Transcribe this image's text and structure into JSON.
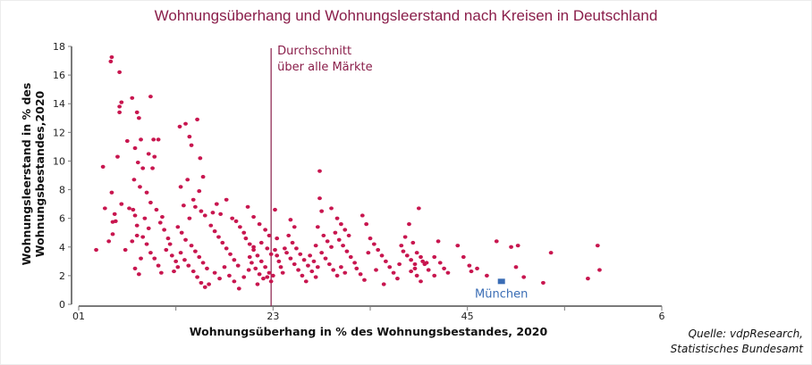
{
  "chart_data": {
    "type": "scatter",
    "title": "Wohnungsüberhang und Wohnungsleerstand nach Kreisen in Deutschland",
    "xlabel": "Wohnungsüberhang in % des Wohnungsbestandes, 2020",
    "ylabel_lines": [
      "Wohnungsleerstand in % des",
      "Wohnungsbestandes,2020"
    ],
    "xlim": [
      0,
      6
    ],
    "ylim": [
      0,
      18
    ],
    "x_ticks": [
      0,
      1,
      2,
      3,
      4,
      5,
      6
    ],
    "x_tick_labels": [
      {
        "at": 0,
        "text": "01"
      },
      {
        "at": 2,
        "text": "23"
      },
      {
        "at": 4,
        "text": "45"
      },
      {
        "at": 6,
        "text": "6"
      }
    ],
    "y_ticks": [
      0,
      2,
      4,
      6,
      8,
      10,
      12,
      14,
      16,
      18
    ],
    "y_tick_labels": [
      "0",
      "2",
      "4",
      "6",
      "8",
      "10",
      "12",
      "14",
      "16",
      "18"
    ],
    "grid": false,
    "average_line": {
      "x": 1.98,
      "label_lines": [
        "Durchschnitt",
        "über alle Märkte"
      ],
      "color": "#8a1e4a"
    },
    "highlight": {
      "name": "München",
      "x": 4.35,
      "y": 1.6,
      "color": "#3a6db5"
    },
    "point_color": "#c8164f",
    "series": [
      {
        "name": "Kreise",
        "points": [
          [
            0.34,
            17.25
          ],
          [
            0.33,
            16.95
          ],
          [
            0.42,
            16.2
          ],
          [
            0.25,
            9.6
          ],
          [
            0.27,
            6.7
          ],
          [
            0.18,
            3.8
          ],
          [
            0.35,
            5.75
          ],
          [
            0.37,
            6.3
          ],
          [
            0.42,
            13.8
          ],
          [
            0.44,
            14.1
          ],
          [
            0.42,
            13.4
          ],
          [
            0.5,
            11.4
          ],
          [
            0.55,
            14.4
          ],
          [
            0.6,
            13.4
          ],
          [
            0.62,
            13.0
          ],
          [
            0.64,
            11.5
          ],
          [
            0.58,
            10.9
          ],
          [
            0.61,
            9.9
          ],
          [
            0.66,
            9.5
          ],
          [
            0.57,
            8.7
          ],
          [
            0.63,
            8.2
          ],
          [
            0.7,
            7.8
          ],
          [
            0.74,
            14.5
          ],
          [
            0.77,
            11.5
          ],
          [
            0.82,
            11.5
          ],
          [
            0.72,
            10.5
          ],
          [
            0.78,
            10.3
          ],
          [
            0.76,
            9.5
          ],
          [
            0.4,
            10.3
          ],
          [
            0.34,
            7.8
          ],
          [
            0.35,
            4.9
          ],
          [
            0.31,
            4.4
          ],
          [
            0.38,
            5.8
          ],
          [
            0.44,
            7.0
          ],
          [
            0.48,
            3.8
          ],
          [
            0.52,
            6.7
          ],
          [
            0.56,
            6.6
          ],
          [
            0.58,
            6.2
          ],
          [
            0.6,
            5.5
          ],
          [
            0.55,
            4.4
          ],
          [
            0.6,
            4.8
          ],
          [
            0.64,
            3.2
          ],
          [
            0.58,
            2.5
          ],
          [
            0.62,
            2.1
          ],
          [
            0.68,
            6.0
          ],
          [
            0.72,
            5.3
          ],
          [
            0.66,
            4.7
          ],
          [
            0.7,
            4.2
          ],
          [
            0.74,
            3.6
          ],
          [
            0.78,
            3.2
          ],
          [
            0.82,
            2.7
          ],
          [
            0.85,
            2.2
          ],
          [
            0.74,
            7.1
          ],
          [
            0.8,
            6.6
          ],
          [
            0.86,
            6.1
          ],
          [
            0.84,
            5.7
          ],
          [
            0.88,
            5.2
          ],
          [
            0.92,
            4.6
          ],
          [
            0.94,
            4.2
          ],
          [
            0.9,
            3.8
          ],
          [
            0.96,
            3.4
          ],
          [
            1.0,
            3.0
          ],
          [
            1.02,
            2.6
          ],
          [
            0.98,
            2.3
          ],
          [
            1.04,
            12.4
          ],
          [
            1.1,
            12.6
          ],
          [
            1.14,
            11.7
          ],
          [
            1.16,
            11.1
          ],
          [
            1.22,
            12.9
          ],
          [
            1.25,
            10.2
          ],
          [
            1.05,
            8.2
          ],
          [
            1.12,
            8.7
          ],
          [
            1.18,
            7.3
          ],
          [
            1.24,
            7.9
          ],
          [
            1.28,
            8.9
          ],
          [
            1.2,
            6.8
          ],
          [
            1.26,
            6.5
          ],
          [
            1.3,
            6.2
          ],
          [
            1.08,
            6.9
          ],
          [
            1.14,
            6.0
          ],
          [
            1.02,
            5.4
          ],
          [
            1.06,
            5.0
          ],
          [
            1.1,
            4.5
          ],
          [
            1.16,
            4.1
          ],
          [
            1.2,
            3.7
          ],
          [
            1.24,
            3.3
          ],
          [
            1.28,
            2.9
          ],
          [
            1.32,
            2.5
          ],
          [
            1.05,
            3.6
          ],
          [
            1.09,
            3.1
          ],
          [
            1.13,
            2.7
          ],
          [
            1.18,
            2.3
          ],
          [
            1.22,
            1.9
          ],
          [
            1.26,
            1.5
          ],
          [
            1.3,
            1.2
          ],
          [
            1.34,
            1.4
          ],
          [
            1.36,
            5.5
          ],
          [
            1.4,
            5.1
          ],
          [
            1.44,
            4.7
          ],
          [
            1.48,
            4.3
          ],
          [
            1.52,
            3.9
          ],
          [
            1.56,
            3.5
          ],
          [
            1.6,
            3.1
          ],
          [
            1.64,
            2.7
          ],
          [
            1.38,
            6.4
          ],
          [
            1.42,
            7.0
          ],
          [
            1.46,
            6.3
          ],
          [
            1.52,
            7.3
          ],
          [
            1.58,
            6.0
          ],
          [
            1.62,
            5.8
          ],
          [
            1.66,
            5.4
          ],
          [
            1.7,
            5.0
          ],
          [
            1.4,
            2.2
          ],
          [
            1.45,
            1.8
          ],
          [
            1.5,
            2.6
          ],
          [
            1.55,
            2.0
          ],
          [
            1.6,
            1.6
          ],
          [
            1.65,
            1.1
          ],
          [
            1.7,
            1.9
          ],
          [
            1.75,
            2.4
          ],
          [
            1.72,
            4.6
          ],
          [
            1.76,
            4.2
          ],
          [
            1.8,
            3.8
          ],
          [
            1.84,
            3.4
          ],
          [
            1.88,
            3.0
          ],
          [
            1.92,
            2.6
          ],
          [
            1.96,
            2.2
          ],
          [
            1.9,
            1.8
          ],
          [
            1.74,
            6.8
          ],
          [
            1.8,
            6.1
          ],
          [
            1.86,
            5.6
          ],
          [
            1.92,
            5.2
          ],
          [
            1.96,
            4.8
          ],
          [
            1.88,
            4.3
          ],
          [
            1.94,
            3.9
          ],
          [
            1.98,
            3.5
          ],
          [
            1.78,
            2.9
          ],
          [
            1.82,
            2.5
          ],
          [
            1.86,
            2.1
          ],
          [
            1.94,
            1.9
          ],
          [
            1.98,
            1.6
          ],
          [
            1.84,
            1.4
          ],
          [
            1.8,
            4.0
          ],
          [
            1.76,
            3.3
          ],
          [
            2.02,
            3.8
          ],
          [
            2.04,
            3.4
          ],
          [
            2.06,
            3.0
          ],
          [
            2.08,
            2.6
          ],
          [
            2.1,
            2.2
          ],
          [
            2.02,
            6.6
          ],
          [
            2.04,
            4.6
          ],
          [
            2.0,
            2.0
          ],
          [
            2.16,
            4.8
          ],
          [
            2.2,
            4.3
          ],
          [
            2.24,
            3.9
          ],
          [
            2.28,
            3.5
          ],
          [
            2.32,
            3.1
          ],
          [
            2.36,
            2.7
          ],
          [
            2.4,
            2.3
          ],
          [
            2.44,
            1.9
          ],
          [
            2.14,
            3.6
          ],
          [
            2.18,
            3.2
          ],
          [
            2.22,
            2.8
          ],
          [
            2.26,
            2.4
          ],
          [
            2.3,
            2.0
          ],
          [
            2.34,
            1.6
          ],
          [
            2.18,
            5.9
          ],
          [
            2.22,
            5.4
          ],
          [
            2.48,
            9.3
          ],
          [
            2.48,
            7.4
          ],
          [
            2.5,
            6.5
          ],
          [
            2.46,
            5.4
          ],
          [
            2.52,
            4.8
          ],
          [
            2.56,
            4.4
          ],
          [
            2.6,
            4.0
          ],
          [
            2.44,
            4.1
          ],
          [
            2.5,
            3.6
          ],
          [
            2.54,
            3.2
          ],
          [
            2.58,
            2.8
          ],
          [
            2.62,
            2.4
          ],
          [
            2.66,
            2.0
          ],
          [
            2.46,
            2.6
          ],
          [
            2.42,
            3.0
          ],
          [
            2.38,
            3.4
          ],
          [
            2.66,
            6.0
          ],
          [
            2.7,
            5.6
          ],
          [
            2.74,
            5.2
          ],
          [
            2.78,
            4.8
          ],
          [
            2.72,
            4.1
          ],
          [
            2.76,
            3.7
          ],
          [
            2.8,
            3.3
          ],
          [
            2.84,
            2.9
          ],
          [
            2.6,
            6.7
          ],
          [
            2.64,
            5.0
          ],
          [
            2.68,
            4.5
          ],
          [
            2.86,
            2.5
          ],
          [
            2.9,
            2.1
          ],
          [
            2.94,
            1.7
          ],
          [
            2.7,
            2.6
          ],
          [
            2.74,
            2.2
          ],
          [
            2.92,
            6.2
          ],
          [
            2.96,
            5.6
          ],
          [
            3.0,
            4.6
          ],
          [
            3.04,
            4.2
          ],
          [
            3.08,
            3.8
          ],
          [
            3.12,
            3.4
          ],
          [
            3.16,
            3.0
          ],
          [
            3.2,
            2.6
          ],
          [
            3.24,
            2.2
          ],
          [
            3.28,
            1.8
          ],
          [
            3.06,
            2.4
          ],
          [
            3.14,
            1.4
          ],
          [
            3.34,
            3.7
          ],
          [
            3.38,
            3.4
          ],
          [
            3.42,
            3.1
          ],
          [
            3.46,
            2.8
          ],
          [
            3.5,
            6.7
          ],
          [
            3.4,
            5.6
          ],
          [
            3.36,
            4.7
          ],
          [
            3.32,
            4.1
          ],
          [
            3.44,
            4.3
          ],
          [
            3.48,
            3.6
          ],
          [
            3.52,
            3.3
          ],
          [
            3.56,
            2.8
          ],
          [
            3.6,
            2.4
          ],
          [
            3.66,
            2.0
          ],
          [
            3.52,
            1.6
          ],
          [
            3.46,
            2.5
          ],
          [
            3.54,
            3.0
          ],
          [
            3.58,
            2.9
          ],
          [
            3.42,
            2.3
          ],
          [
            3.48,
            2.0
          ],
          [
            3.7,
            4.4
          ],
          [
            3.72,
            2.9
          ],
          [
            3.66,
            3.3
          ],
          [
            3.76,
            2.5
          ],
          [
            3.8,
            2.2
          ],
          [
            3.9,
            4.1
          ],
          [
            3.96,
            3.3
          ],
          [
            4.02,
            2.7
          ],
          [
            4.04,
            2.3
          ],
          [
            4.1,
            2.5
          ],
          [
            4.3,
            4.4
          ],
          [
            4.2,
            2.0
          ],
          [
            4.45,
            4.0
          ],
          [
            4.52,
            4.1
          ],
          [
            4.5,
            2.6
          ],
          [
            4.58,
            1.9
          ],
          [
            4.78,
            1.5
          ],
          [
            4.86,
            3.6
          ],
          [
            5.24,
            1.8
          ],
          [
            5.34,
            4.1
          ],
          [
            5.36,
            2.4
          ],
          [
            3.3,
            2.8
          ],
          [
            2.98,
            3.6
          ],
          [
            2.12,
            3.9
          ]
        ]
      }
    ],
    "source_lines": [
      "Quelle: vdpResearch,",
      "Statistisches Bundesamt"
    ]
  }
}
